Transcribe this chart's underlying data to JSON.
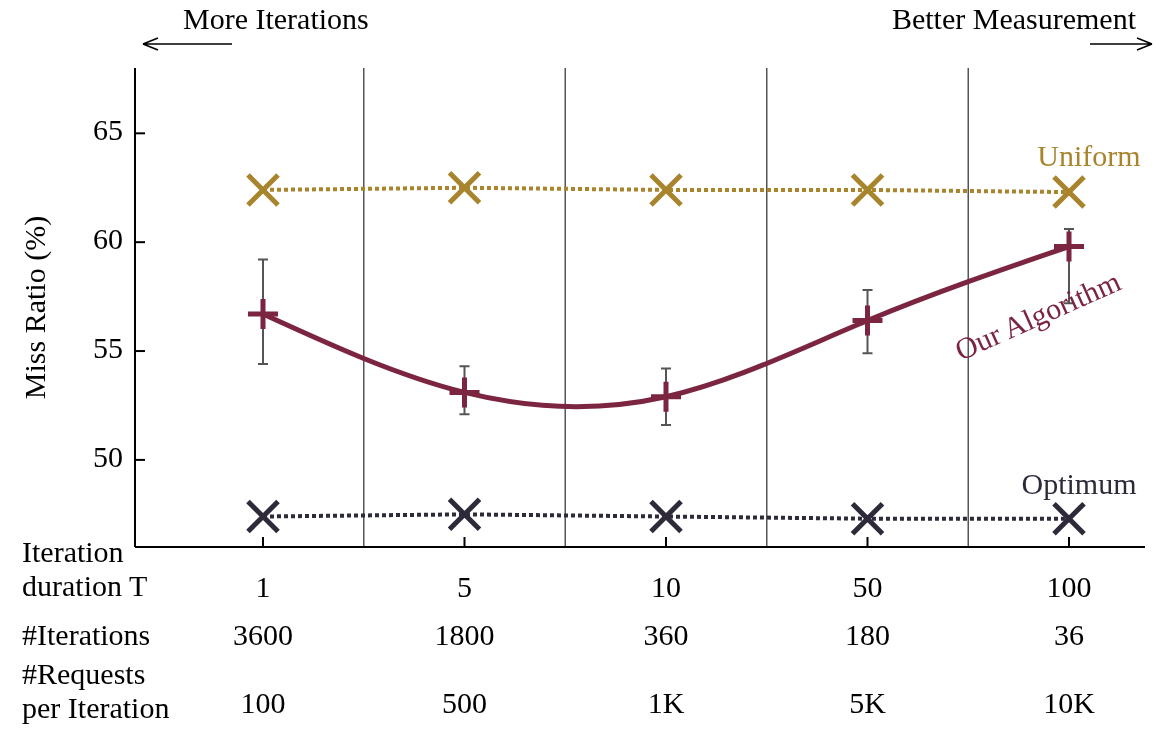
{
  "chart_data": {
    "type": "line",
    "ylabel": "Miss Ratio (%)",
    "xlabel": "Iteration\nduration T",
    "categories": [
      "1",
      "5",
      "10",
      "50",
      "100"
    ],
    "series": [
      {
        "name": "Uniform",
        "color": "#a8842c",
        "values": [
          62.4,
          62.5,
          62.4,
          62.4,
          62.3
        ],
        "marker": "cross",
        "line_style": "dotted"
      },
      {
        "name": "Our Algorithm",
        "color": "#7b2541",
        "values": [
          56.7,
          53.1,
          52.9,
          56.4,
          59.8
        ],
        "marker": "cross",
        "line_style": "solid",
        "errors": [
          [
            54.4,
            59.2
          ],
          [
            52.1,
            54.3
          ],
          [
            51.6,
            54.2
          ],
          [
            54.9,
            57.8
          ],
          [
            57.2,
            60.6
          ]
        ]
      },
      {
        "name": "Optimum",
        "color": "#2e2a3a",
        "values": [
          47.4,
          47.5,
          47.4,
          47.3,
          47.3
        ],
        "marker": "cross",
        "line_style": "dotted"
      }
    ],
    "ylim": [
      46,
      68
    ],
    "yticks": [
      50,
      55,
      60,
      65
    ],
    "grid": "x",
    "annotations": [
      "More Iterations",
      "Better Measurement",
      "#Iterations",
      "3600",
      "1800",
      "360",
      "180",
      "36",
      "#Requests\nper Iteration",
      "100",
      "500",
      "1K",
      "5K",
      "10K"
    ]
  }
}
